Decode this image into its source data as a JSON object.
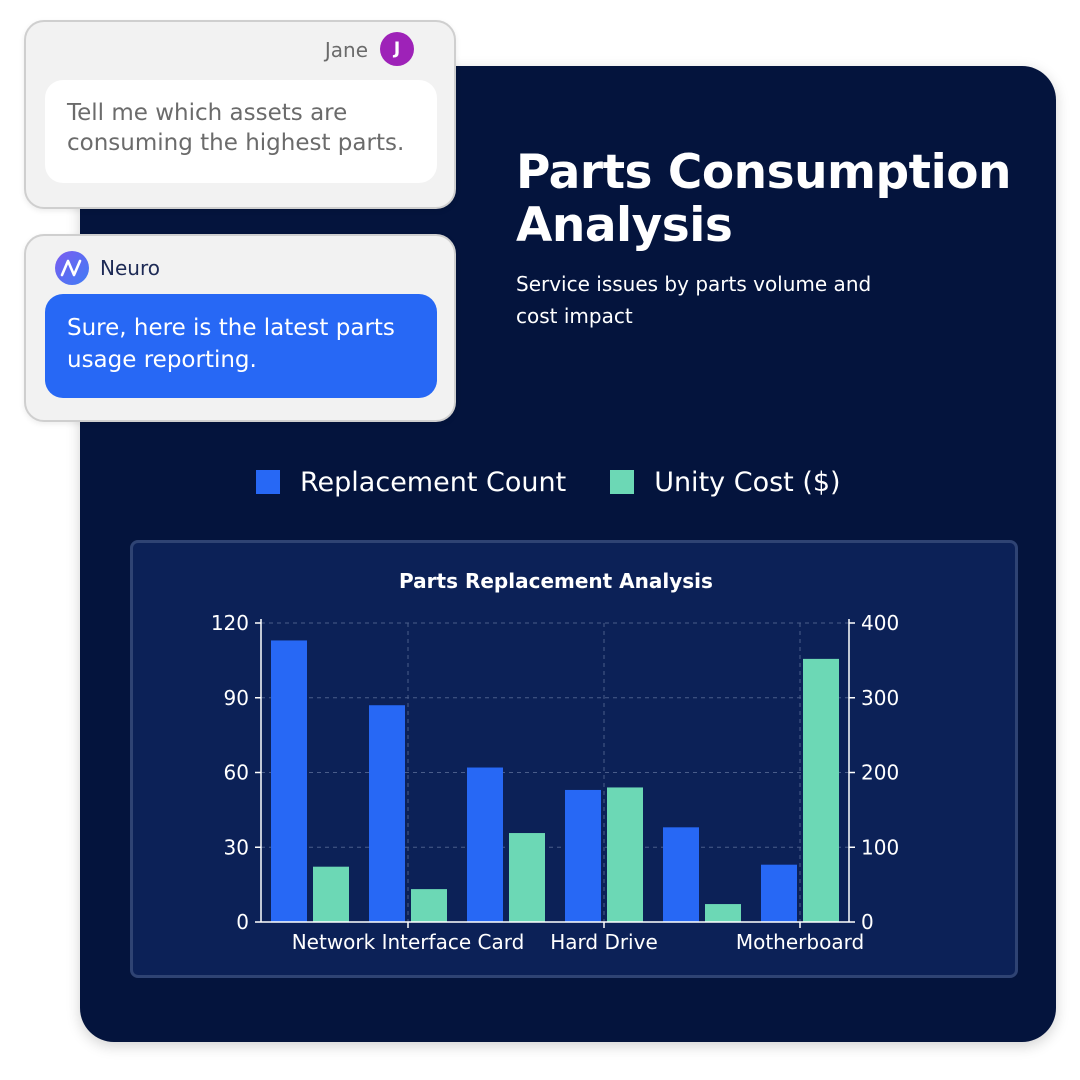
{
  "colors": {
    "panel_bg": "#04143d",
    "chart_bg": "#0c2157",
    "count_color": "#2768f5",
    "cost_color": "#6cd8b5",
    "avatar_color": "#9e22b8"
  },
  "chat": {
    "user": {
      "name": "Jane",
      "initial": "J",
      "message": "Tell me which assets are consuming the highest parts."
    },
    "bot": {
      "name": "Neuro",
      "logo_icon": "neuro-logo-icon",
      "message": "Sure, here is the latest parts usage reporting."
    }
  },
  "header": {
    "title": "Parts Consumption Analysis",
    "subtitle": "Service issues by parts volume and cost impact"
  },
  "legend": {
    "items": [
      {
        "label": "Replacement Count",
        "color": "#2768f5"
      },
      {
        "label": "Unity Cost ($)",
        "color": "#6cd8b5"
      }
    ]
  },
  "chart_data": {
    "type": "bar",
    "title": "Parts Replacement Analysis",
    "categories": [
      "",
      "Network Interface Card",
      "",
      "Hard Drive",
      "",
      "Motherboard"
    ],
    "series": [
      {
        "name": "Replacement Count",
        "axis": "left",
        "values": [
          113,
          87,
          62,
          53,
          38,
          23
        ]
      },
      {
        "name": "Unity Cost ($)",
        "axis": "right",
        "values": [
          74,
          44,
          119,
          180,
          24,
          352
        ]
      }
    ],
    "y_left": {
      "ticks": [
        0,
        30,
        60,
        90,
        120
      ],
      "range": [
        0,
        120
      ]
    },
    "y_right": {
      "ticks": [
        0,
        100,
        200,
        300,
        400
      ],
      "range": [
        0,
        400
      ]
    },
    "grid": true
  }
}
